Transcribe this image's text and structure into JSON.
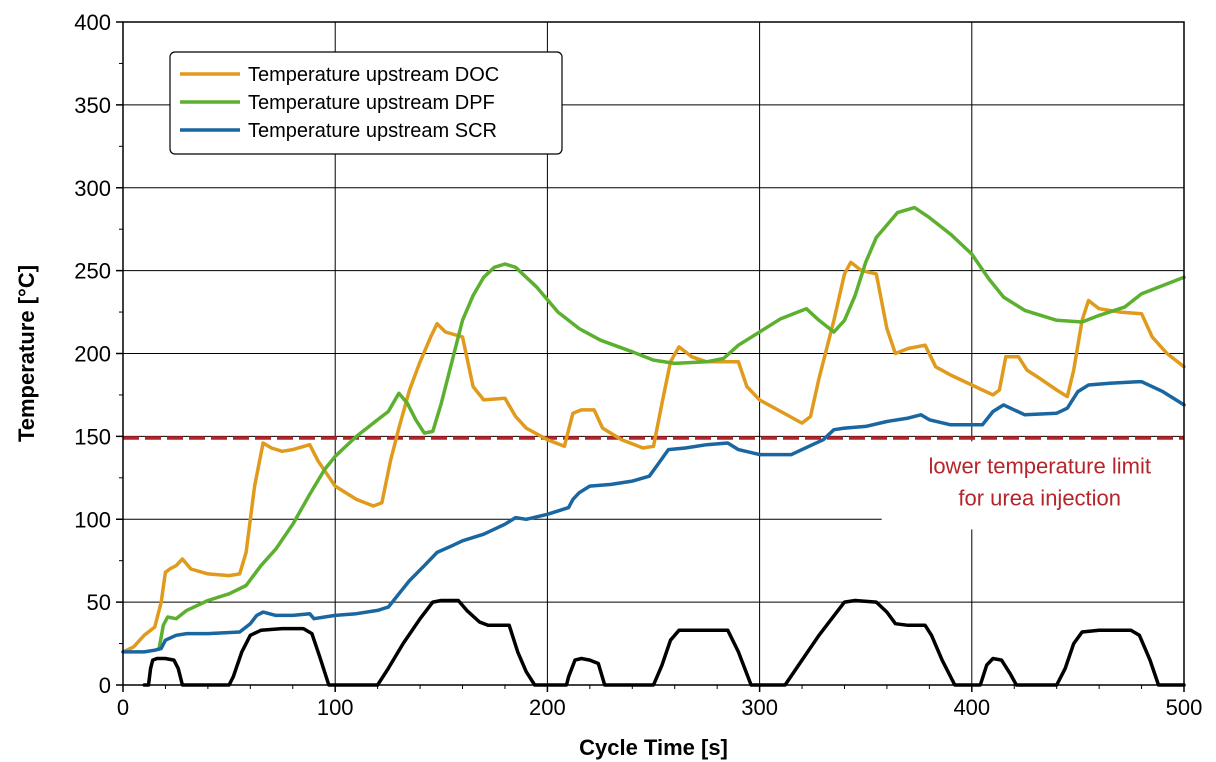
{
  "chart_data": {
    "type": "line",
    "xlabel": "Cycle Time [s]",
    "ylabel": "Temperature [°C]",
    "xlim": [
      0,
      500
    ],
    "ylim": [
      0,
      400
    ],
    "x_ticks": [
      0,
      100,
      200,
      300,
      400,
      500
    ],
    "y_ticks": [
      0,
      50,
      100,
      150,
      200,
      250,
      300,
      350,
      400
    ],
    "grid": true,
    "legend_position": "top-left",
    "series": [
      {
        "name": "Temperature upstream DOC",
        "color": "#e09a1c",
        "points": [
          [
            0,
            20
          ],
          [
            5,
            23
          ],
          [
            10,
            30
          ],
          [
            15,
            35
          ],
          [
            18,
            50
          ],
          [
            20,
            68
          ],
          [
            22,
            70
          ],
          [
            25,
            72
          ],
          [
            28,
            76
          ],
          [
            32,
            70
          ],
          [
            40,
            67
          ],
          [
            50,
            66
          ],
          [
            55,
            67
          ],
          [
            58,
            80
          ],
          [
            62,
            120
          ],
          [
            66,
            146
          ],
          [
            70,
            143
          ],
          [
            75,
            141
          ],
          [
            80,
            142
          ],
          [
            88,
            145
          ],
          [
            92,
            135
          ],
          [
            100,
            120
          ],
          [
            110,
            112
          ],
          [
            118,
            108
          ],
          [
            122,
            110
          ],
          [
            126,
            135
          ],
          [
            130,
            155
          ],
          [
            135,
            178
          ],
          [
            140,
            195
          ],
          [
            145,
            210
          ],
          [
            148,
            218
          ],
          [
            152,
            213
          ],
          [
            160,
            210
          ],
          [
            165,
            180
          ],
          [
            170,
            172
          ],
          [
            180,
            173
          ],
          [
            185,
            162
          ],
          [
            190,
            155
          ],
          [
            200,
            148
          ],
          [
            208,
            144
          ],
          [
            212,
            164
          ],
          [
            216,
            166
          ],
          [
            222,
            166
          ],
          [
            226,
            155
          ],
          [
            235,
            148
          ],
          [
            245,
            143
          ],
          [
            250,
            144
          ],
          [
            254,
            170
          ],
          [
            258,
            195
          ],
          [
            262,
            204
          ],
          [
            268,
            198
          ],
          [
            275,
            195
          ],
          [
            290,
            195
          ],
          [
            294,
            180
          ],
          [
            300,
            172
          ],
          [
            310,
            165
          ],
          [
            320,
            158
          ],
          [
            324,
            162
          ],
          [
            328,
            185
          ],
          [
            335,
            220
          ],
          [
            340,
            248
          ],
          [
            343,
            255
          ],
          [
            348,
            250
          ],
          [
            355,
            248
          ],
          [
            360,
            215
          ],
          [
            364,
            200
          ],
          [
            370,
            203
          ],
          [
            378,
            205
          ],
          [
            383,
            192
          ],
          [
            390,
            187
          ],
          [
            400,
            181
          ],
          [
            410,
            175
          ],
          [
            413,
            178
          ],
          [
            416,
            198
          ],
          [
            422,
            198
          ],
          [
            426,
            190
          ],
          [
            432,
            185
          ],
          [
            440,
            178
          ],
          [
            445,
            174
          ],
          [
            448,
            190
          ],
          [
            452,
            220
          ],
          [
            455,
            232
          ],
          [
            460,
            227
          ],
          [
            470,
            225
          ],
          [
            480,
            224
          ],
          [
            485,
            210
          ],
          [
            492,
            200
          ],
          [
            500,
            192
          ]
        ]
      },
      {
        "name": "Temperature upstream DPF",
        "color": "#5cb030",
        "points": [
          [
            17,
            22
          ],
          [
            19,
            36
          ],
          [
            21,
            41
          ],
          [
            25,
            40
          ],
          [
            30,
            45
          ],
          [
            40,
            51
          ],
          [
            50,
            55
          ],
          [
            58,
            60
          ],
          [
            65,
            72
          ],
          [
            72,
            82
          ],
          [
            80,
            97
          ],
          [
            88,
            115
          ],
          [
            95,
            130
          ],
          [
            100,
            138
          ],
          [
            110,
            150
          ],
          [
            120,
            160
          ],
          [
            125,
            165
          ],
          [
            130,
            176
          ],
          [
            134,
            170
          ],
          [
            138,
            160
          ],
          [
            142,
            152
          ],
          [
            146,
            153
          ],
          [
            150,
            170
          ],
          [
            155,
            195
          ],
          [
            160,
            220
          ],
          [
            165,
            235
          ],
          [
            170,
            246
          ],
          [
            175,
            252
          ],
          [
            180,
            254
          ],
          [
            185,
            252
          ],
          [
            195,
            240
          ],
          [
            205,
            225
          ],
          [
            215,
            215
          ],
          [
            225,
            208
          ],
          [
            240,
            201
          ],
          [
            250,
            196
          ],
          [
            260,
            194
          ],
          [
            275,
            195
          ],
          [
            283,
            197
          ],
          [
            290,
            205
          ],
          [
            300,
            213
          ],
          [
            310,
            221
          ],
          [
            322,
            227
          ],
          [
            328,
            220
          ],
          [
            335,
            213
          ],
          [
            340,
            220
          ],
          [
            345,
            235
          ],
          [
            350,
            255
          ],
          [
            355,
            270
          ],
          [
            365,
            285
          ],
          [
            373,
            288
          ],
          [
            380,
            282
          ],
          [
            390,
            272
          ],
          [
            400,
            260
          ],
          [
            408,
            245
          ],
          [
            415,
            234
          ],
          [
            425,
            226
          ],
          [
            440,
            220
          ],
          [
            452,
            219
          ],
          [
            460,
            223
          ],
          [
            472,
            228
          ],
          [
            480,
            236
          ],
          [
            490,
            241
          ],
          [
            500,
            246
          ]
        ]
      },
      {
        "name": "Temperature upstream SCR",
        "color": "#1a66a0",
        "points": [
          [
            0,
            20
          ],
          [
            10,
            20
          ],
          [
            15,
            21
          ],
          [
            18,
            22
          ],
          [
            20,
            27
          ],
          [
            25,
            30
          ],
          [
            30,
            31
          ],
          [
            40,
            31
          ],
          [
            55,
            32
          ],
          [
            60,
            37
          ],
          [
            63,
            42
          ],
          [
            66,
            44
          ],
          [
            72,
            42
          ],
          [
            80,
            42
          ],
          [
            88,
            43
          ],
          [
            90,
            40
          ],
          [
            95,
            41
          ],
          [
            100,
            42
          ],
          [
            110,
            43
          ],
          [
            120,
            45
          ],
          [
            125,
            47
          ],
          [
            130,
            55
          ],
          [
            135,
            63
          ],
          [
            142,
            72
          ],
          [
            148,
            80
          ],
          [
            155,
            84
          ],
          [
            160,
            87
          ],
          [
            170,
            91
          ],
          [
            180,
            97
          ],
          [
            185,
            101
          ],
          [
            190,
            100
          ],
          [
            200,
            103
          ],
          [
            210,
            107
          ],
          [
            212,
            112
          ],
          [
            215,
            116
          ],
          [
            220,
            120
          ],
          [
            230,
            121
          ],
          [
            240,
            123
          ],
          [
            248,
            126
          ],
          [
            252,
            133
          ],
          [
            257,
            142
          ],
          [
            265,
            143
          ],
          [
            275,
            145
          ],
          [
            285,
            146
          ],
          [
            290,
            142
          ],
          [
            300,
            139
          ],
          [
            315,
            139
          ],
          [
            320,
            142
          ],
          [
            330,
            148
          ],
          [
            335,
            154
          ],
          [
            340,
            155
          ],
          [
            350,
            156
          ],
          [
            360,
            159
          ],
          [
            370,
            161
          ],
          [
            376,
            163
          ],
          [
            380,
            160
          ],
          [
            390,
            157
          ],
          [
            400,
            157
          ],
          [
            405,
            157
          ],
          [
            410,
            165
          ],
          [
            415,
            169
          ],
          [
            420,
            166
          ],
          [
            425,
            163
          ],
          [
            440,
            164
          ],
          [
            445,
            167
          ],
          [
            450,
            177
          ],
          [
            455,
            181
          ],
          [
            465,
            182
          ],
          [
            478,
            183
          ],
          [
            480,
            183
          ],
          [
            490,
            177
          ],
          [
            500,
            169
          ]
        ]
      },
      {
        "name": "",
        "color": "#000000",
        "points": [
          [
            10,
            0
          ],
          [
            12,
            0
          ],
          [
            13,
            10
          ],
          [
            14,
            15
          ],
          [
            16,
            16
          ],
          [
            20,
            16
          ],
          [
            24,
            15
          ],
          [
            26,
            10
          ],
          [
            28,
            0
          ],
          [
            50,
            0
          ],
          [
            52,
            5
          ],
          [
            56,
            20
          ],
          [
            60,
            30
          ],
          [
            65,
            33
          ],
          [
            75,
            34
          ],
          [
            85,
            34
          ],
          [
            89,
            31
          ],
          [
            93,
            16
          ],
          [
            97,
            0
          ],
          [
            120,
            0
          ],
          [
            125,
            10
          ],
          [
            132,
            25
          ],
          [
            140,
            40
          ],
          [
            146,
            50
          ],
          [
            150,
            51
          ],
          [
            158,
            51
          ],
          [
            162,
            45
          ],
          [
            168,
            38
          ],
          [
            172,
            36
          ],
          [
            182,
            36
          ],
          [
            186,
            20
          ],
          [
            190,
            8
          ],
          [
            194,
            0
          ],
          [
            209,
            0
          ],
          [
            210,
            5
          ],
          [
            213,
            15
          ],
          [
            216,
            16
          ],
          [
            220,
            15
          ],
          [
            224,
            13
          ],
          [
            227,
            0
          ],
          [
            250,
            0
          ],
          [
            254,
            12
          ],
          [
            258,
            27
          ],
          [
            262,
            33
          ],
          [
            270,
            33
          ],
          [
            285,
            33
          ],
          [
            290,
            20
          ],
          [
            296,
            0
          ],
          [
            312,
            0
          ],
          [
            320,
            15
          ],
          [
            328,
            30
          ],
          [
            334,
            40
          ],
          [
            340,
            50
          ],
          [
            345,
            51
          ],
          [
            355,
            50
          ],
          [
            360,
            44
          ],
          [
            364,
            37
          ],
          [
            370,
            36
          ],
          [
            378,
            36
          ],
          [
            381,
            30
          ],
          [
            386,
            15
          ],
          [
            392,
            0
          ],
          [
            404,
            0
          ],
          [
            407,
            12
          ],
          [
            410,
            16
          ],
          [
            414,
            15
          ],
          [
            418,
            7
          ],
          [
            421,
            0
          ],
          [
            440,
            0
          ],
          [
            444,
            10
          ],
          [
            448,
            25
          ],
          [
            452,
            32
          ],
          [
            460,
            33
          ],
          [
            475,
            33
          ],
          [
            479,
            30
          ],
          [
            484,
            15
          ],
          [
            488,
            0
          ],
          [
            500,
            0
          ]
        ]
      }
    ],
    "reference_lines": [
      {
        "y": 149,
        "color": "#b5242a",
        "style": "dashed"
      }
    ],
    "annotations": [
      {
        "lines": [
          "lower temperature limit",
          "for urea injection"
        ],
        "at": [
          432,
          118
        ],
        "color": "#b5242a"
      }
    ]
  }
}
